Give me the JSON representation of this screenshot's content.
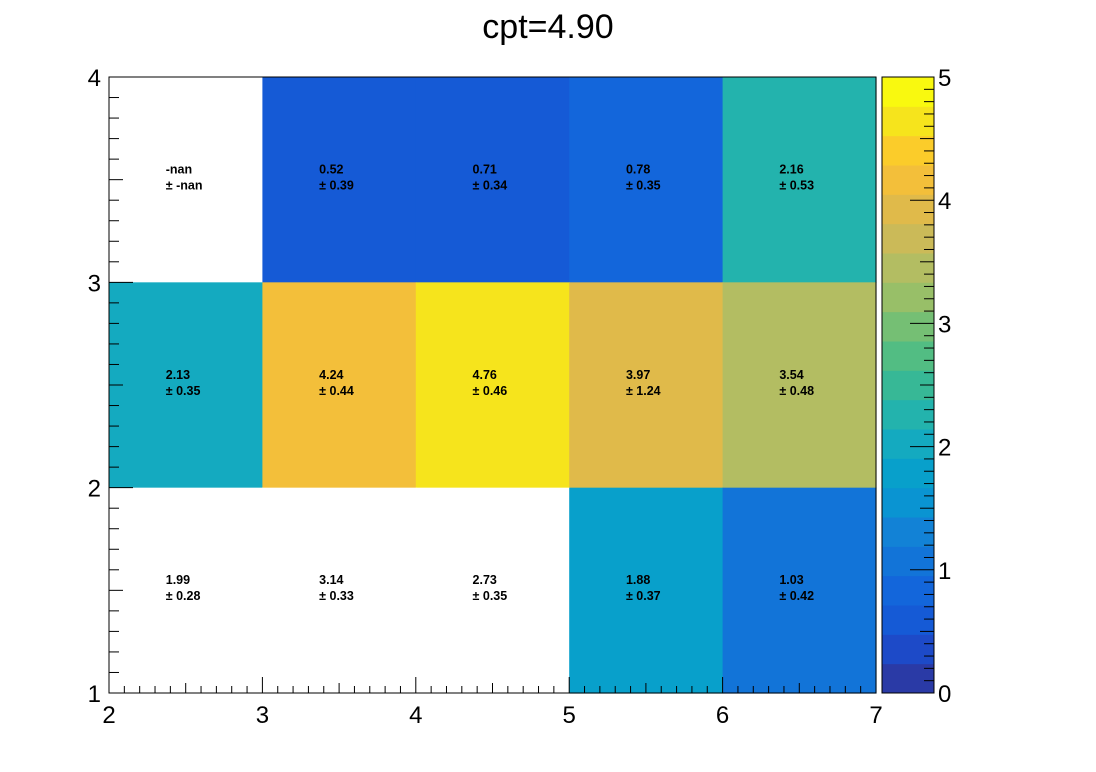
{
  "chart_data": {
    "type": "heatmap",
    "title": "cpt=4.90",
    "xlabel": "",
    "ylabel": "",
    "x_edges": [
      2,
      3,
      4,
      5,
      6,
      7
    ],
    "y_edges": [
      1,
      2,
      3,
      4
    ],
    "xlim": [
      2,
      7
    ],
    "ylim": [
      1,
      4
    ],
    "zlim": [
      0,
      5
    ],
    "x_tick_labels": [
      "2",
      "3",
      "4",
      "5",
      "6",
      "7"
    ],
    "y_tick_labels": [
      "1",
      "2",
      "3",
      "4"
    ],
    "z_tick_labels": [
      "0",
      "1",
      "2",
      "3",
      "4",
      "5"
    ],
    "grid": false,
    "legend": "colorbar-right",
    "cells": [
      {
        "xi": 0,
        "yi": 2,
        "value": null,
        "label": "-nan",
        "error": "± -nan"
      },
      {
        "xi": 1,
        "yi": 2,
        "value": 0.52,
        "label": "0.52",
        "error": "± 0.39"
      },
      {
        "xi": 2,
        "yi": 2,
        "value": 0.71,
        "label": "0.71",
        "error": "± 0.34"
      },
      {
        "xi": 3,
        "yi": 2,
        "value": 0.78,
        "label": "0.78",
        "error": "± 0.35"
      },
      {
        "xi": 4,
        "yi": 2,
        "value": 2.16,
        "label": "2.16",
        "error": "± 0.53"
      },
      {
        "xi": 0,
        "yi": 1,
        "value": 2.13,
        "label": "2.13",
        "error": "± 0.35"
      },
      {
        "xi": 1,
        "yi": 1,
        "value": 4.24,
        "label": "4.24",
        "error": "± 0.44"
      },
      {
        "xi": 2,
        "yi": 1,
        "value": 4.76,
        "label": "4.76",
        "error": "± 0.46"
      },
      {
        "xi": 3,
        "yi": 1,
        "value": 3.97,
        "label": "3.97",
        "error": "± 1.24"
      },
      {
        "xi": 4,
        "yi": 1,
        "value": 3.54,
        "label": "3.54",
        "error": "± 0.48"
      },
      {
        "xi": 0,
        "yi": 0,
        "value": 1.99,
        "label": "1.99",
        "error": "± 0.28",
        "empty_fill": true
      },
      {
        "xi": 1,
        "yi": 0,
        "value": 3.14,
        "label": "3.14",
        "error": "± 0.33",
        "empty_fill": true
      },
      {
        "xi": 2,
        "yi": 0,
        "value": 2.73,
        "label": "2.73",
        "error": "± 0.35",
        "empty_fill": true
      },
      {
        "xi": 3,
        "yi": 0,
        "value": 1.88,
        "label": "1.88",
        "error": "± 0.37"
      },
      {
        "xi": 4,
        "yi": 0,
        "value": 1.03,
        "label": "1.03",
        "error": "± 0.42"
      }
    ],
    "palette": [
      "#2a3aa6",
      "#1d4ac8",
      "#155ad6",
      "#1366db",
      "#1274d8",
      "#1282d6",
      "#0a94d2",
      "#08a0cb",
      "#14aac0",
      "#23b3ad",
      "#37b896",
      "#52bd83",
      "#75bf74",
      "#98bf68",
      "#b3bd62",
      "#cbba58",
      "#e0ba4a",
      "#f3bf3a",
      "#fbcc2a",
      "#f6e41c",
      "#f9f90f"
    ]
  }
}
